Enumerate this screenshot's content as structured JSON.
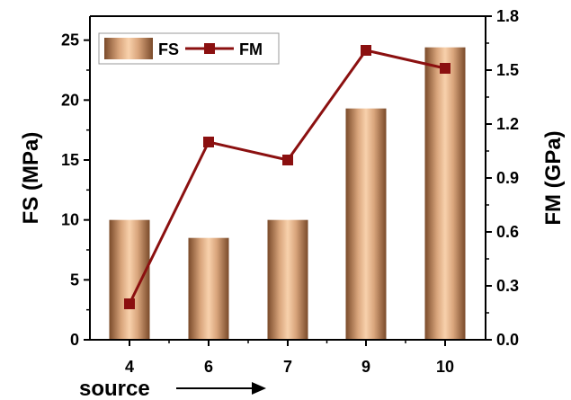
{
  "chart_data": {
    "type": "bar+line",
    "categories": [
      "4",
      "6",
      "7",
      "9",
      "10"
    ],
    "series": [
      {
        "name": "FS",
        "type": "bar",
        "axis": "left",
        "values": [
          10.0,
          8.5,
          10.0,
          19.3,
          24.4
        ]
      },
      {
        "name": "FM",
        "type": "line",
        "axis": "right",
        "values": [
          0.2,
          1.1,
          1.0,
          1.61,
          1.51
        ]
      }
    ],
    "xlabel": "source",
    "ylabel_left": "FS (MPa)",
    "ylabel_right": "FM (GPa)",
    "ylim_left": [
      0,
      27
    ],
    "ylim_right": [
      0,
      1.8
    ],
    "yticks_left": [
      "0",
      "5",
      "10",
      "15",
      "20",
      "25"
    ],
    "yticks_right": [
      "0.0",
      "0.3",
      "0.6",
      "0.9",
      "1.2",
      "1.5",
      "1.8"
    ],
    "yticks_left_values": [
      0,
      5,
      10,
      15,
      20,
      25
    ],
    "yticks_right_values": [
      0,
      0.3,
      0.6,
      0.9,
      1.2,
      1.5,
      1.8
    ],
    "legend": {
      "position": "top-left",
      "items": [
        "FS",
        "FM"
      ]
    },
    "grid": false,
    "colors": {
      "bar_edge": "#8B5A36",
      "bar_center": "#F6CBA3",
      "line": "#8B1010",
      "marker": "#8B1010"
    }
  }
}
